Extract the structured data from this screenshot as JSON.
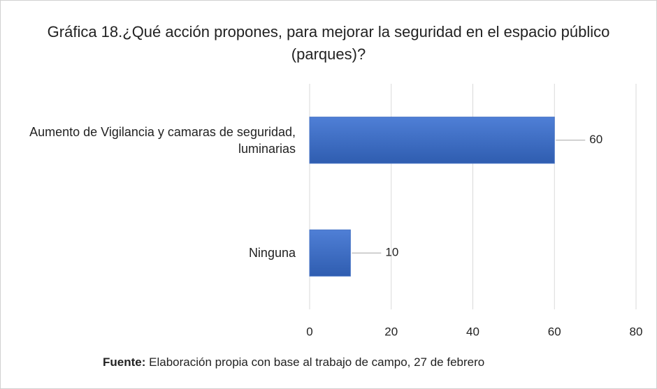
{
  "chart_data": {
    "type": "bar",
    "orientation": "horizontal",
    "title": "Gráfica 18.¿Qué acción propones, para mejorar la seguridad en el espacio público (parques)?",
    "categories": [
      "Aumento de Vigilancia y camaras de seguridad, luminarias",
      "Ninguna"
    ],
    "values": [
      60,
      10
    ],
    "color": "#4472c4",
    "xlim": [
      0,
      80
    ],
    "xticks": [
      0,
      20,
      40,
      60,
      80
    ],
    "grid": true,
    "source": {
      "label": "Fuente:",
      "text": "Elaboración propia con base al trabajo de campo, 27 de febrero"
    }
  }
}
